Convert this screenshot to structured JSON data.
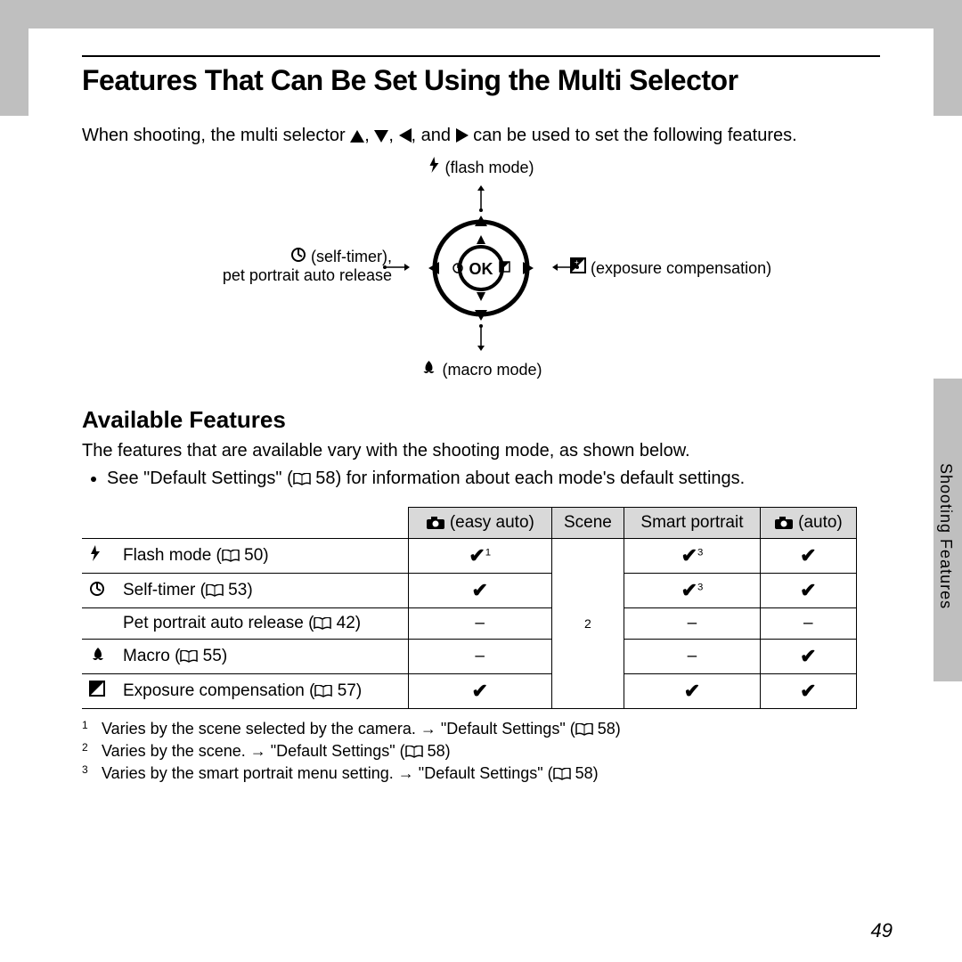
{
  "page": {
    "title": "Features That Can Be Set Using the Multi Selector",
    "intro_pre": "When shooting, the multi selector ",
    "intro_post": " can be used to set the following features.",
    "subtitle": "Available Features",
    "para": "The features that are available vary with the shooting mode, as shown below.",
    "bullet1_pre": "See \"Default Settings\" (",
    "bullet1_ref": " 58",
    "bullet1_post": ") for information about each mode's default settings.",
    "side_label": "Shooting Features",
    "page_number": "49"
  },
  "diagram": {
    "top": "(flash mode)",
    "left1": "(self-timer),",
    "left2": "pet portrait auto release",
    "right": "(exposure compensation)",
    "bottom": "(macro mode)",
    "ok": "OK"
  },
  "table": {
    "headers": {
      "easy_auto": "(easy auto)",
      "scene": "Scene",
      "smart_portrait": "Smart portrait",
      "auto": "(auto)"
    },
    "rows": [
      {
        "label": "Flash mode",
        "ref": "50",
        "icon": "flash",
        "easy": "check1",
        "scene": "span",
        "smart": "check3",
        "auto": "check"
      },
      {
        "label": "Self-timer",
        "ref": "53",
        "icon": "timer",
        "easy": "check",
        "scene": "",
        "smart": "check3",
        "auto": "check"
      },
      {
        "label": "Pet portrait auto release",
        "ref": "42",
        "icon": "",
        "easy": "dash",
        "scene": "",
        "smart": "dash",
        "auto": "dash"
      },
      {
        "label": "Macro",
        "ref": "55",
        "icon": "macro",
        "easy": "dash",
        "scene": "",
        "smart": "dash",
        "auto": "check"
      },
      {
        "label": "Exposure compensation",
        "ref": "57",
        "icon": "exp",
        "easy": "check",
        "scene": "",
        "smart": "check",
        "auto": "check"
      }
    ],
    "scene_span_text": "2"
  },
  "footnotes": {
    "f1": "Varies by the scene selected by the camera. → \"Default Settings\" (",
    "f1ref": " 58)",
    "f2": "Varies by the scene. → \"Default Settings\" (",
    "f2ref": " 58)",
    "f3": "Varies by the smart portrait menu setting. → \"Default Settings\" (",
    "f3ref": " 58)"
  },
  "glyphs": {
    "and_sep": ", and ",
    "sep": ", "
  }
}
